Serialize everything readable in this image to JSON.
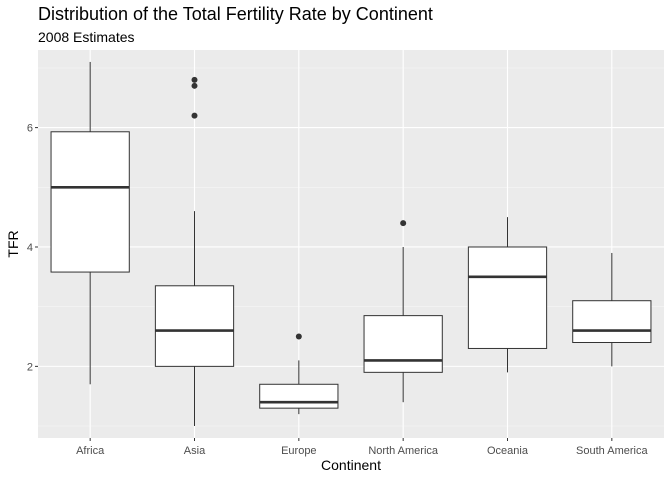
{
  "chart_data": {
    "type": "boxplot",
    "title": "Distribution of the Total Fertility Rate by Continent",
    "subtitle": "2008 Estimates",
    "xlabel": "Continent",
    "ylabel": "TFR",
    "ylim": [
      0.8,
      7.3
    ],
    "yticks": [
      2,
      4,
      6
    ],
    "grid": true,
    "colors": {
      "panel": "#ebebeb",
      "grid_major": "#ffffff",
      "grid_minor": "#f5f5f5",
      "box_fill": "#ffffff",
      "box_line": "#333333"
    },
    "categories": [
      "Africa",
      "Asia",
      "Europe",
      "North America",
      "Oceania",
      "South America"
    ],
    "boxes": [
      {
        "category": "Africa",
        "min": 1.7,
        "q1": 3.58,
        "median": 5.0,
        "q3": 5.93,
        "max": 7.1,
        "outliers": []
      },
      {
        "category": "Asia",
        "min": 1.0,
        "q1": 2.0,
        "median": 2.6,
        "q3": 3.35,
        "max": 4.6,
        "outliers": [
          6.2,
          6.7,
          6.8
        ]
      },
      {
        "category": "Europe",
        "min": 1.2,
        "q1": 1.3,
        "median": 1.4,
        "q3": 1.7,
        "max": 2.1,
        "outliers": [
          2.5
        ]
      },
      {
        "category": "North America",
        "min": 1.4,
        "q1": 1.9,
        "median": 2.1,
        "q3": 2.85,
        "max": 4.0,
        "outliers": [
          4.4
        ]
      },
      {
        "category": "Oceania",
        "min": 1.9,
        "q1": 2.3,
        "median": 3.5,
        "q3": 4.0,
        "max": 4.5,
        "outliers": []
      },
      {
        "category": "South America",
        "min": 2.0,
        "q1": 2.4,
        "median": 2.6,
        "q3": 3.1,
        "max": 3.9,
        "outliers": []
      }
    ]
  }
}
